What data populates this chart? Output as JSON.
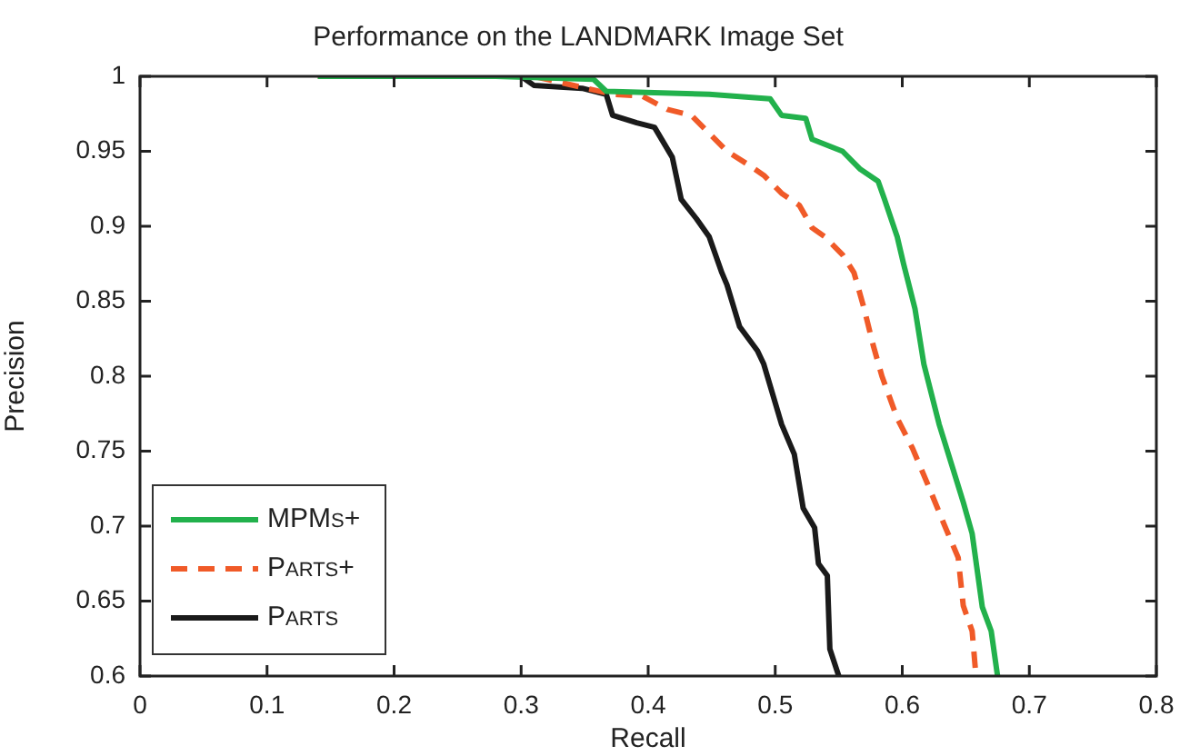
{
  "chart_data": {
    "type": "line",
    "title": "Performance on the LANDMARK Image Set",
    "xlabel": "Recall",
    "ylabel": "Precision",
    "xlim": [
      0,
      0.8
    ],
    "ylim": [
      0.6,
      1
    ],
    "xticks": [
      0,
      0.1,
      0.2,
      0.3,
      0.4,
      0.5,
      0.6,
      0.7,
      0.8
    ],
    "yticks": [
      0.6,
      0.65,
      0.7,
      0.75,
      0.8,
      0.85,
      0.9,
      0.95,
      1
    ],
    "grid": false,
    "legend": "bottom left",
    "marker": "none",
    "series": [
      {
        "name": "MPMs+",
        "color": "#22b14c",
        "line_style": "solid",
        "x": [
          0.14,
          0.28,
          0.357,
          0.367,
          0.448,
          0.496,
          0.505,
          0.524,
          0.529,
          0.553,
          0.567,
          0.581,
          0.586,
          0.596,
          0.601,
          0.61,
          0.617,
          0.629,
          0.648,
          0.655,
          0.663,
          0.67,
          0.675
        ],
        "values": [
          1,
          1,
          0.998,
          0.99,
          0.988,
          0.985,
          0.974,
          0.972,
          0.958,
          0.95,
          0.938,
          0.93,
          0.918,
          0.893,
          0.875,
          0.845,
          0.808,
          0.768,
          0.716,
          0.695,
          0.646,
          0.63,
          0.6
        ]
      },
      {
        "name": "Parts+",
        "color": "#f05a28",
        "line_style": "dashed",
        "x": [
          0.14,
          0.31,
          0.372,
          0.395,
          0.415,
          0.434,
          0.448,
          0.462,
          0.477,
          0.491,
          0.505,
          0.519,
          0.529,
          0.539,
          0.553,
          0.562,
          0.57,
          0.577,
          0.584,
          0.596,
          0.608,
          0.62,
          0.634,
          0.644,
          0.648,
          0.655,
          0.658
        ],
        "values": [
          1,
          1,
          0.988,
          0.987,
          0.978,
          0.974,
          0.962,
          0.95,
          0.942,
          0.934,
          0.922,
          0.914,
          0.899,
          0.893,
          0.881,
          0.869,
          0.845,
          0.821,
          0.8,
          0.772,
          0.752,
          0.728,
          0.699,
          0.679,
          0.647,
          0.63,
          0.6
        ]
      },
      {
        "name": "Parts",
        "color": "#1a1a1a",
        "line_style": "solid",
        "x": [
          0.224,
          0.3,
          0.31,
          0.348,
          0.367,
          0.372,
          0.391,
          0.405,
          0.419,
          0.426,
          0.438,
          0.448,
          0.458,
          0.462,
          0.472,
          0.486,
          0.491,
          0.505,
          0.515,
          0.522,
          0.531,
          0.534,
          0.541,
          0.543,
          0.55
        ],
        "values": [
          1,
          1,
          0.994,
          0.992,
          0.988,
          0.974,
          0.969,
          0.966,
          0.946,
          0.918,
          0.905,
          0.893,
          0.869,
          0.861,
          0.833,
          0.817,
          0.808,
          0.768,
          0.748,
          0.712,
          0.699,
          0.675,
          0.667,
          0.618,
          0.6
        ]
      }
    ]
  }
}
